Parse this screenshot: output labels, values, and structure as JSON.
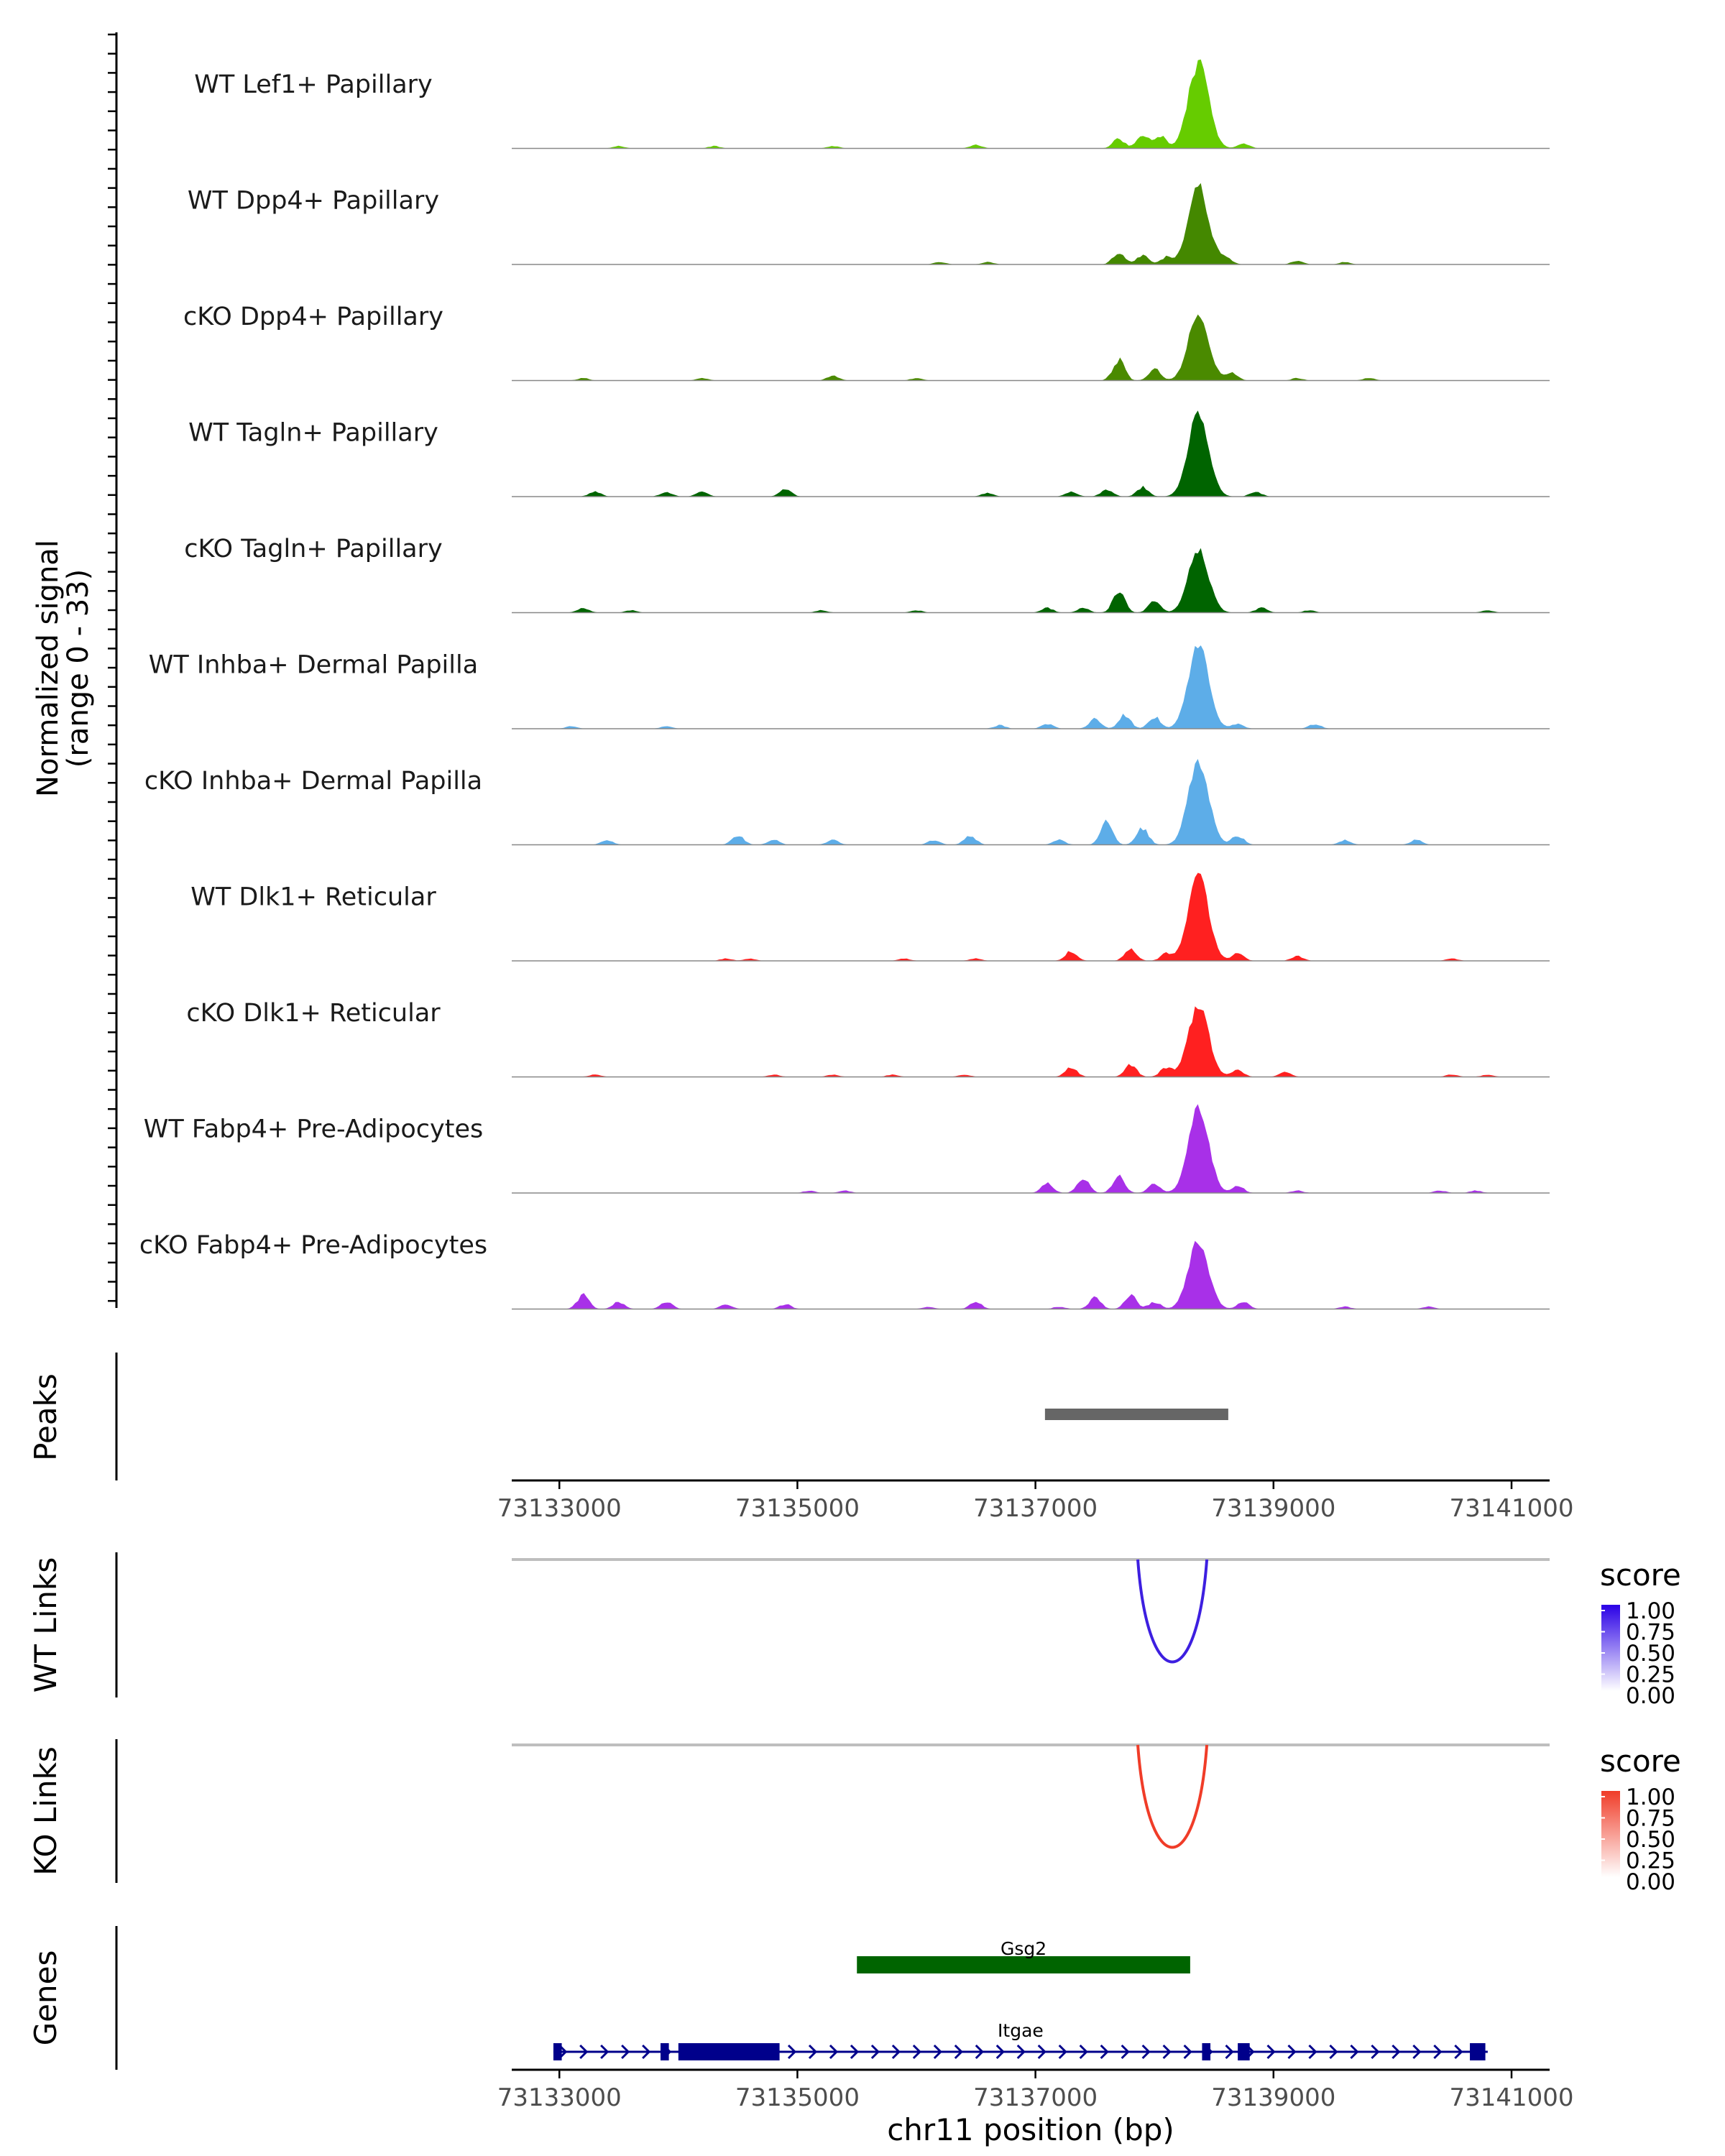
{
  "chart_data": {
    "type": "area",
    "region": "chr11",
    "title": "",
    "xlabel": "chr11 position (bp)",
    "xlim": [
      73132600,
      73141320
    ],
    "xticks": [
      73133000,
      73135000,
      73137000,
      73139000,
      73141000
    ],
    "xtick_labels": [
      "73133000",
      "73135000",
      "73137000",
      "73139000",
      "73141000"
    ],
    "ylabel_line1": "Normalized signal",
    "ylabel_line2": "(range 0 - 33)",
    "ylim": [
      0,
      33
    ],
    "coverage_tracks": [
      {
        "name": "WT Lef1+ Papillary",
        "color": "#66CC00",
        "main_peak": {
          "center": 73138370,
          "height": 33
        },
        "bumps": [
          [
            73137700,
            4
          ],
          [
            73137900,
            6
          ],
          [
            73138050,
            5
          ],
          [
            73138750,
            2
          ],
          [
            73135300,
            1
          ],
          [
            73134300,
            1
          ],
          [
            73133500,
            1
          ],
          [
            73136500,
            1.5
          ]
        ]
      },
      {
        "name": "WT Dpp4+ Papillary",
        "color": "#448800",
        "main_peak": {
          "center": 73138370,
          "height": 30
        },
        "bumps": [
          [
            73137700,
            5
          ],
          [
            73137900,
            4
          ],
          [
            73138100,
            3
          ],
          [
            73138600,
            3
          ],
          [
            73139200,
            1.5
          ],
          [
            73139600,
            1
          ],
          [
            73136200,
            1
          ],
          [
            73136600,
            1
          ]
        ]
      },
      {
        "name": "cKO Dpp4+ Papillary",
        "color": "#4A8A00",
        "main_peak": {
          "center": 73138370,
          "height": 26
        },
        "bumps": [
          [
            73137700,
            9
          ],
          [
            73138000,
            5
          ],
          [
            73138650,
            3
          ],
          [
            73135300,
            2
          ],
          [
            73136000,
            1
          ],
          [
            73134200,
            1
          ],
          [
            73133200,
            1
          ],
          [
            73139200,
            1
          ],
          [
            73139800,
            1
          ]
        ]
      },
      {
        "name": "WT Tagln+ Papillary",
        "color": "#006400",
        "main_peak": {
          "center": 73138370,
          "height": 33
        },
        "bumps": [
          [
            73133300,
            2
          ],
          [
            73133900,
            2
          ],
          [
            73134200,
            2
          ],
          [
            73134900,
            3
          ],
          [
            73136600,
            1.5
          ],
          [
            73137300,
            2
          ],
          [
            73137600,
            3
          ],
          [
            73137900,
            4
          ],
          [
            73138850,
            2
          ]
        ]
      },
      {
        "name": "cKO Tagln+ Papillary",
        "color": "#006400",
        "main_peak": {
          "center": 73138370,
          "height": 24
        },
        "bumps": [
          [
            73133200,
            2
          ],
          [
            73133600,
            1
          ],
          [
            73137100,
            2
          ],
          [
            73137400,
            2
          ],
          [
            73137700,
            9
          ],
          [
            73138000,
            5
          ],
          [
            73138900,
            2
          ],
          [
            73139300,
            1
          ],
          [
            73135200,
            1
          ],
          [
            73136000,
            1
          ],
          [
            73140800,
            1
          ]
        ]
      },
      {
        "name": "WT Inhba+ Dermal Papilla",
        "color": "#5DADE8",
        "main_peak": {
          "center": 73138370,
          "height": 33
        },
        "bumps": [
          [
            73137500,
            4
          ],
          [
            73137750,
            6
          ],
          [
            73138000,
            5
          ],
          [
            73138700,
            2
          ],
          [
            73139350,
            2
          ],
          [
            73136700,
            1.5
          ],
          [
            73137100,
            2
          ],
          [
            73133900,
            1
          ],
          [
            73133100,
            1
          ]
        ]
      },
      {
        "name": "cKO Inhba+ Dermal Papilla",
        "color": "#5DADE8",
        "main_peak": {
          "center": 73138370,
          "height": 33
        },
        "bumps": [
          [
            73137600,
            10
          ],
          [
            73137900,
            7
          ],
          [
            73138700,
            4
          ],
          [
            73134500,
            4
          ],
          [
            73136450,
            4
          ],
          [
            73136150,
            2
          ],
          [
            73133400,
            2
          ],
          [
            73134800,
            2
          ],
          [
            73135300,
            2
          ],
          [
            73139600,
            2
          ],
          [
            73140200,
            2
          ],
          [
            73137200,
            2
          ]
        ]
      },
      {
        "name": "WT Dlk1+ Reticular",
        "color": "#FF2020",
        "main_peak": {
          "center": 73138370,
          "height": 33
        },
        "bumps": [
          [
            73137300,
            4
          ],
          [
            73137800,
            5
          ],
          [
            73138100,
            3
          ],
          [
            73138700,
            3
          ],
          [
            73139200,
            2
          ],
          [
            73136500,
            1
          ],
          [
            73135900,
            1
          ],
          [
            73134600,
            1
          ],
          [
            73134400,
            1
          ],
          [
            73140500,
            1
          ]
        ]
      },
      {
        "name": "cKO Dlk1+ Reticular",
        "color": "#FF2020",
        "main_peak": {
          "center": 73138370,
          "height": 28
        },
        "bumps": [
          [
            73137300,
            4
          ],
          [
            73137800,
            5
          ],
          [
            73138100,
            4
          ],
          [
            73138700,
            3
          ],
          [
            73139100,
            2
          ],
          [
            73136400,
            1
          ],
          [
            73135800,
            1
          ],
          [
            73135300,
            1
          ],
          [
            73133300,
            1
          ],
          [
            73134800,
            1
          ],
          [
            73140500,
            1
          ],
          [
            73140800,
            1
          ]
        ]
      },
      {
        "name": "WT Fabp4+ Pre-Adipocytes",
        "color": "#A830E8",
        "main_peak": {
          "center": 73138370,
          "height": 33
        },
        "bumps": [
          [
            73137100,
            4
          ],
          [
            73137400,
            6
          ],
          [
            73137700,
            7
          ],
          [
            73138000,
            4
          ],
          [
            73138700,
            3
          ],
          [
            73139200,
            1
          ],
          [
            73135100,
            1
          ],
          [
            73135400,
            1
          ],
          [
            73140400,
            1
          ],
          [
            73140700,
            1
          ]
        ]
      },
      {
        "name": "cKO Fabp4+ Pre-Adipocytes",
        "color": "#A830E8",
        "main_peak": {
          "center": 73138370,
          "height": 26
        },
        "bumps": [
          [
            73133200,
            6
          ],
          [
            73133500,
            3
          ],
          [
            73133900,
            3
          ],
          [
            73134400,
            2
          ],
          [
            73134900,
            2
          ],
          [
            73136100,
            1
          ],
          [
            73136500,
            3
          ],
          [
            73137200,
            1
          ],
          [
            73137500,
            5
          ],
          [
            73137800,
            6
          ],
          [
            73138000,
            3
          ],
          [
            73138750,
            3
          ],
          [
            73139600,
            1
          ],
          [
            73140300,
            1
          ]
        ]
      }
    ],
    "peaks_track": {
      "label": "Peaks",
      "ranges": [
        [
          73137080,
          73138620
        ]
      ],
      "color": "#666666"
    },
    "links": [
      {
        "label": "WT Links",
        "color": "#3D1FE0",
        "start": 73137860,
        "end": 73138440,
        "legend_title": "score",
        "legend_low": "#FFFFFF",
        "legend_high": "#2A00E6",
        "legend_ticks": [
          "1.00",
          "0.75",
          "0.50",
          "0.25",
          "0.00"
        ]
      },
      {
        "label": "KO Links",
        "color": "#F03C28",
        "start": 73137860,
        "end": 73138440,
        "legend_title": "score",
        "legend_low": "#FFFFFF",
        "legend_high": "#F03C28",
        "legend_ticks": [
          "1.00",
          "0.75",
          "0.50",
          "0.25",
          "0.00"
        ]
      }
    ],
    "genes": {
      "label": "Genes",
      "items": [
        {
          "name": "Gsg2",
          "start": 73135500,
          "end": 73138300,
          "color": "#006400",
          "strand": ""
        },
        {
          "name": "Itgae",
          "start": 73132950,
          "end": 73140800,
          "color": "#00008B",
          "strand": "+",
          "exons": [
            [
              73132950,
              73133020
            ],
            [
              73133850,
              73133920
            ],
            [
              73134000,
              73134850
            ],
            [
              73138400,
              73138470
            ],
            [
              73138700,
              73138800
            ],
            [
              73140650,
              73140780
            ]
          ]
        }
      ]
    }
  }
}
